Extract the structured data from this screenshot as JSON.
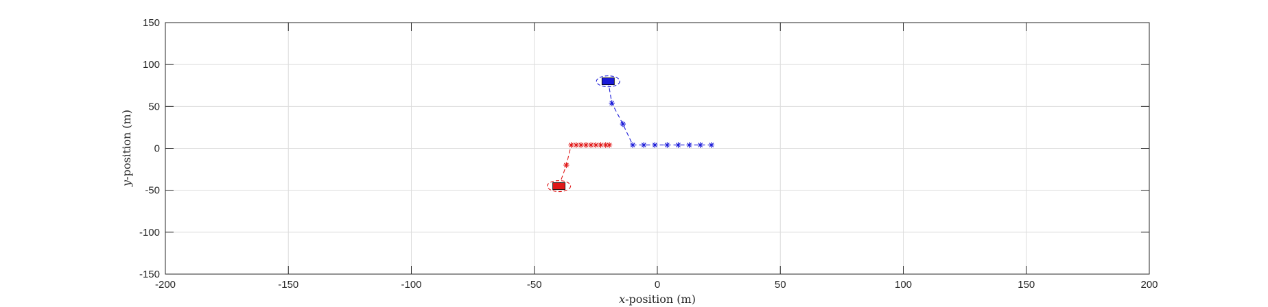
{
  "chart_data": {
    "type": "scatter",
    "title": "",
    "xlabel_var": "x",
    "xlabel_rest": "-position (m)",
    "ylabel_var": "y",
    "ylabel_rest": "-position (m)",
    "xlim": [
      -200,
      200
    ],
    "ylim": [
      -150,
      150
    ],
    "xticks": [
      "-200",
      "-150",
      "-100",
      "-50",
      "0",
      "50",
      "100",
      "150",
      "200"
    ],
    "yticks": [
      "150",
      "100",
      "50",
      "0",
      "-50",
      "-100",
      "-150"
    ],
    "xtick_values": [
      -200,
      -150,
      -100,
      -50,
      0,
      50,
      100,
      150,
      200
    ],
    "ytick_values": [
      150,
      100,
      50,
      0,
      -50,
      -100,
      -150
    ],
    "grid": true,
    "series": [
      {
        "color": "#e01818",
        "vehicle": {
          "x": -40,
          "y": -45
        },
        "path": [
          {
            "x": -40,
            "y": -45
          },
          {
            "x": -37,
            "y": -20
          },
          {
            "x": -35,
            "y": 4
          },
          {
            "x": -20,
            "y": 4
          }
        ],
        "markers": [
          {
            "x": -37,
            "y": -20
          },
          {
            "x": -35,
            "y": 4
          },
          {
            "x": -33,
            "y": 4
          },
          {
            "x": -31,
            "y": 4
          },
          {
            "x": -29,
            "y": 4
          },
          {
            "x": -27,
            "y": 4
          },
          {
            "x": -25,
            "y": 4
          },
          {
            "x": -23,
            "y": 4
          },
          {
            "x": -21,
            "y": 4
          },
          {
            "x": -19.5,
            "y": 4
          }
        ]
      },
      {
        "color": "#1a1ad8",
        "vehicle": {
          "x": -20,
          "y": 80
        },
        "path": [
          {
            "x": -20,
            "y": 80
          },
          {
            "x": -18.5,
            "y": 54
          },
          {
            "x": -14,
            "y": 29
          },
          {
            "x": -10,
            "y": 4
          },
          {
            "x": 22,
            "y": 4
          }
        ],
        "markers": [
          {
            "x": -18.5,
            "y": 54
          },
          {
            "x": -14,
            "y": 29
          },
          {
            "x": -10,
            "y": 4
          },
          {
            "x": -5.5,
            "y": 4
          },
          {
            "x": -1,
            "y": 4
          },
          {
            "x": 4,
            "y": 4
          },
          {
            "x": 8.5,
            "y": 4
          },
          {
            "x": 13,
            "y": 4
          },
          {
            "x": 17.5,
            "y": 4
          },
          {
            "x": 22,
            "y": 4
          }
        ]
      }
    ]
  }
}
